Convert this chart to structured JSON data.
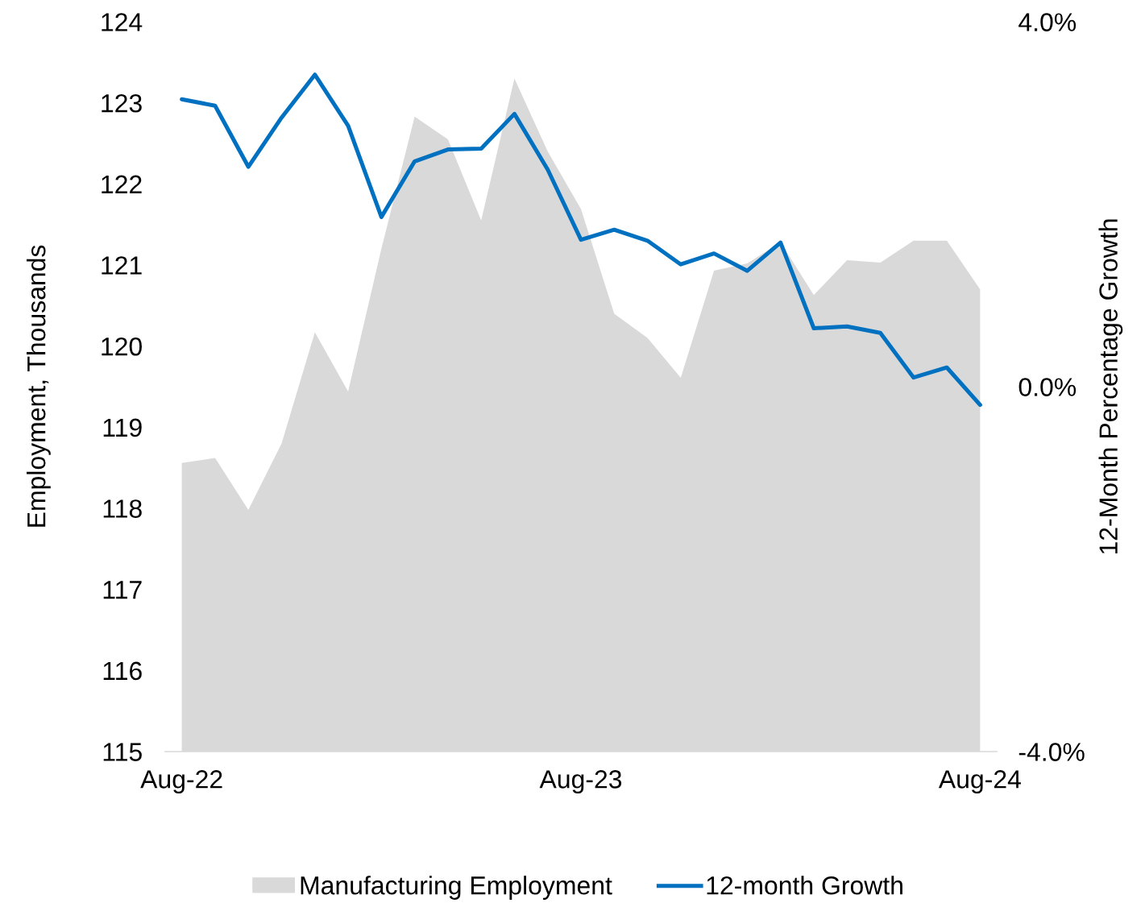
{
  "chart_data": {
    "type": "area",
    "ylabel": "Employment, Thousands",
    "y2label": "12-Month Percentage Growth",
    "categories": [
      "Aug-22",
      null,
      null,
      null,
      null,
      null,
      null,
      null,
      null,
      null,
      null,
      null,
      "Aug-23",
      null,
      null,
      null,
      null,
      null,
      null,
      null,
      null,
      null,
      null,
      null,
      "Aug-24"
    ],
    "series": [
      {
        "name": "Manufacturing Employment",
        "color": "#d9d9d9",
        "values": [
          118.56,
          118.62,
          117.98,
          118.8,
          120.17,
          119.44,
          121.2,
          122.83,
          122.55,
          121.55,
          123.3,
          122.4,
          121.69,
          120.4,
          120.1,
          119.61,
          120.93,
          121.02,
          121.28,
          120.63,
          121.06,
          121.03,
          121.3,
          121.3,
          120.7
        ]
      },
      {
        "name": "12-month Growth",
        "type": "line",
        "axis": "y2",
        "color": "#0070c0",
        "values": [
          3.15,
          3.08,
          2.41,
          2.95,
          3.42,
          2.86,
          1.86,
          2.47,
          2.6,
          2.61,
          2.99,
          2.38,
          1.61,
          1.72,
          1.6,
          1.34,
          1.46,
          1.27,
          1.58,
          0.64,
          0.66,
          0.59,
          0.1,
          0.21,
          -0.2
        ]
      }
    ],
    "ylim": [
      115,
      124
    ],
    "yticks": [
      115,
      116,
      117,
      118,
      119,
      120,
      121,
      122,
      123,
      124
    ],
    "y2lim": [
      -4,
      4
    ],
    "y2ticks": [
      {
        "value": -4,
        "label": "-4.0%"
      },
      {
        "value": 0,
        "label": "0.0%"
      },
      {
        "value": 4,
        "label": "4.0%"
      }
    ],
    "legend": "bottom"
  }
}
